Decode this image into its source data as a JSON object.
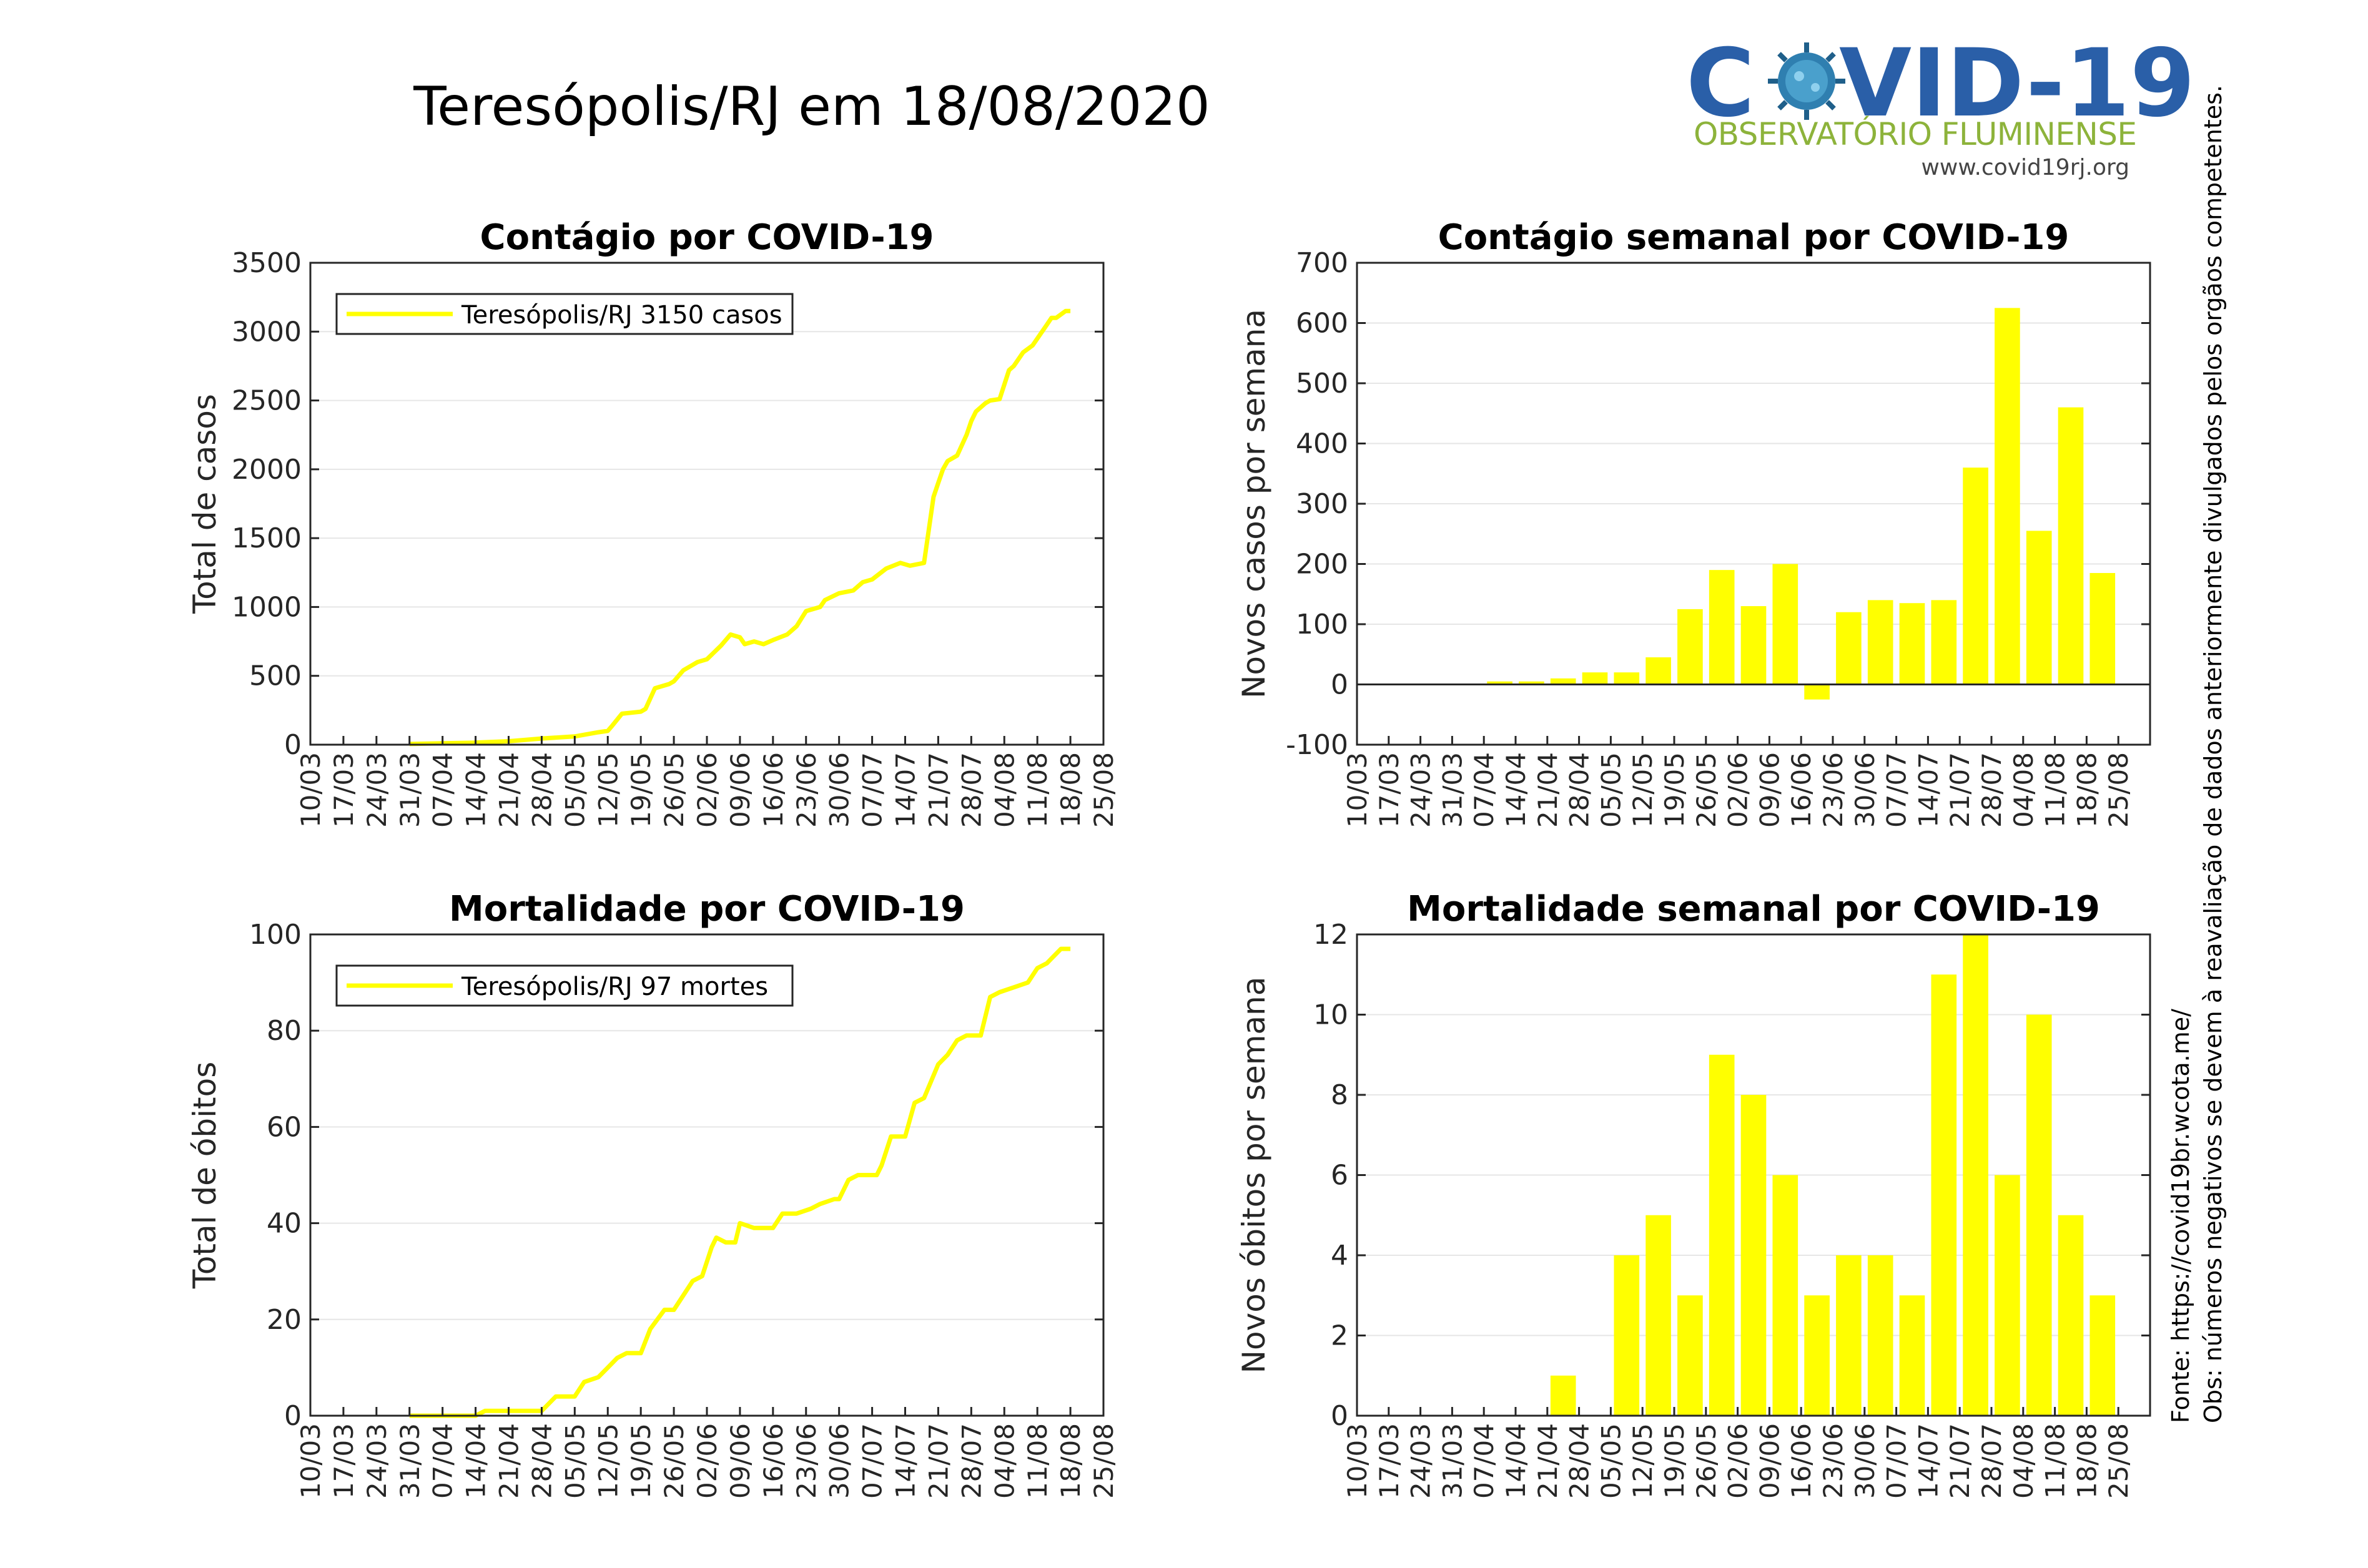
{
  "page_title": "Teresópolis/RJ em 18/08/2020",
  "logo": {
    "text_left": "C",
    "text_right": "VID-19",
    "subtitle": "OBSERVATÓRIO FLUMINENSE",
    "url": "www.covid19rj.org",
    "icon": "virus-icon",
    "colors": {
      "main": "#2a5fa8",
      "subtitle": "#8db33b",
      "url": "#444444"
    }
  },
  "side_notes": {
    "source": "Fonte: https://covid19br.wcota.me/",
    "note": "Obs: números negativos se devem à reavaliação de dados anteriormente divulgados pelos orgãos competentes."
  },
  "colors": {
    "series": "#ffff00",
    "axis": "#262626",
    "grid": "#e6e6e6"
  },
  "week_labels": [
    "10/03",
    "17/03",
    "24/03",
    "31/03",
    "07/04",
    "14/04",
    "21/04",
    "28/04",
    "05/05",
    "12/05",
    "19/05",
    "26/05",
    "02/06",
    "09/06",
    "16/06",
    "23/06",
    "30/06",
    "07/07",
    "14/07",
    "21/07",
    "28/07",
    "04/08",
    "11/08",
    "18/08",
    "25/08"
  ],
  "chart_data": [
    {
      "id": "cases-cumulative",
      "type": "line",
      "title": "Contágio por COVID-19",
      "xlabel": "",
      "ylabel": "Total de casos",
      "ylim": [
        0,
        3500
      ],
      "yticks": [
        0,
        500,
        1000,
        1500,
        2000,
        2500,
        3000,
        3500
      ],
      "grid": true,
      "legend": {
        "position": "top-left",
        "label": "Teresópolis/RJ  3150 casos"
      },
      "series": [
        {
          "name": "Teresópolis/RJ",
          "x": [
            "31/03",
            "07/04",
            "14/04",
            "21/04",
            "28/04",
            "05/05",
            "10/05",
            "12/05",
            "13/05",
            "15/05",
            "19/05",
            "20/05",
            "22/05",
            "25/05",
            "26/05",
            "28/05",
            "30/05",
            "31/05",
            "02/06",
            "05/06",
            "07/06",
            "09/06",
            "10/06",
            "12/06",
            "14/06",
            "16/06",
            "19/06",
            "21/06",
            "23/06",
            "26/06",
            "27/06",
            "30/06",
            "03/07",
            "05/07",
            "07/07",
            "10/07",
            "13/07",
            "15/07",
            "18/07",
            "20/07",
            "21/07",
            "22/07",
            "23/07",
            "25/07",
            "27/07",
            "28/07",
            "29/07",
            "31/07",
            "01/08",
            "03/08",
            "05/08",
            "06/08",
            "08/08",
            "10/08",
            "11/08",
            "13/08",
            "14/08",
            "15/08",
            "17/08",
            "18/08"
          ],
          "y": [
            5,
            10,
            15,
            25,
            45,
            60,
            90,
            100,
            140,
            225,
            240,
            260,
            410,
            440,
            460,
            540,
            580,
            600,
            620,
            720,
            800,
            780,
            730,
            750,
            730,
            760,
            800,
            860,
            970,
            1000,
            1050,
            1100,
            1120,
            1180,
            1200,
            1280,
            1320,
            1300,
            1320,
            1800,
            1900,
            2000,
            2060,
            2100,
            2250,
            2350,
            2420,
            2480,
            2500,
            2510,
            2720,
            2750,
            2850,
            2900,
            2950,
            3050,
            3100,
            3100,
            3150,
            3150
          ]
        }
      ]
    },
    {
      "id": "cases-weekly",
      "type": "bar",
      "title": "Contágio semanal por COVID-19",
      "xlabel": "",
      "ylabel": "Novos casos por semana",
      "ylim": [
        -100,
        700
      ],
      "yticks": [
        -100,
        0,
        100,
        200,
        300,
        400,
        500,
        600,
        700
      ],
      "grid": true,
      "categories": [
        "10/03",
        "17/03",
        "24/03",
        "31/03",
        "07/04",
        "14/04",
        "21/04",
        "28/04",
        "05/05",
        "12/05",
        "19/05",
        "26/05",
        "02/06",
        "09/06",
        "16/06",
        "23/06",
        "30/06",
        "07/07",
        "14/07",
        "21/07",
        "28/07",
        "04/08",
        "11/08",
        "18/08"
      ],
      "values": [
        0,
        0,
        0,
        0,
        5,
        5,
        10,
        20,
        20,
        45,
        125,
        190,
        130,
        200,
        -25,
        120,
        140,
        135,
        140,
        360,
        625,
        255,
        460,
        185
      ]
    },
    {
      "id": "deaths-cumulative",
      "type": "line",
      "title": "Mortalidade por COVID-19",
      "xlabel": "",
      "ylabel": "Total de óbitos",
      "ylim": [
        0,
        100
      ],
      "yticks": [
        0,
        20,
        40,
        60,
        80,
        100
      ],
      "grid": true,
      "legend": {
        "position": "top-left",
        "label": "Teresópolis/RJ  97 mortes"
      },
      "series": [
        {
          "name": "Teresópolis/RJ",
          "x": [
            "31/03",
            "14/04",
            "16/04",
            "28/04",
            "01/05",
            "05/05",
            "07/05",
            "10/05",
            "12/05",
            "14/05",
            "16/05",
            "19/05",
            "21/05",
            "24/05",
            "26/05",
            "28/05",
            "30/05",
            "01/06",
            "03/06",
            "04/06",
            "06/06",
            "08/06",
            "09/06",
            "12/06",
            "16/06",
            "18/06",
            "21/06",
            "24/06",
            "26/06",
            "29/06",
            "30/06",
            "02/07",
            "04/07",
            "08/07",
            "09/07",
            "11/07",
            "14/07",
            "16/07",
            "18/07",
            "21/07",
            "23/07",
            "25/07",
            "27/07",
            "30/07",
            "01/08",
            "03/08",
            "06/08",
            "09/08",
            "11/08",
            "13/08",
            "14/08",
            "16/08",
            "18/08"
          ],
          "y": [
            0,
            0,
            1,
            1,
            4,
            4,
            7,
            8,
            10,
            12,
            13,
            13,
            18,
            22,
            22,
            25,
            28,
            29,
            35,
            37,
            36,
            36,
            40,
            39,
            39,
            42,
            42,
            43,
            44,
            45,
            45,
            49,
            50,
            50,
            52,
            58,
            58,
            65,
            66,
            73,
            75,
            78,
            79,
            79,
            87,
            88,
            89,
            90,
            93,
            94,
            95,
            97,
            97
          ]
        }
      ]
    },
    {
      "id": "deaths-weekly",
      "type": "bar",
      "title": "Mortalidade semanal por COVID-19",
      "xlabel": "",
      "ylabel": "Novos óbitos por semana",
      "ylim": [
        0,
        12
      ],
      "yticks": [
        0,
        2,
        4,
        6,
        8,
        10,
        12
      ],
      "grid": true,
      "categories": [
        "10/03",
        "17/03",
        "24/03",
        "31/03",
        "07/04",
        "14/04",
        "21/04",
        "28/04",
        "05/05",
        "12/05",
        "19/05",
        "26/05",
        "02/06",
        "09/06",
        "16/06",
        "23/06",
        "30/06",
        "07/07",
        "14/07",
        "21/07",
        "28/07",
        "04/08",
        "11/08",
        "18/08"
      ],
      "values": [
        0,
        0,
        0,
        0,
        0,
        0,
        1,
        0,
        4,
        5,
        3,
        9,
        8,
        6,
        3,
        4,
        4,
        3,
        11,
        12,
        6,
        10,
        5,
        3
      ]
    }
  ]
}
